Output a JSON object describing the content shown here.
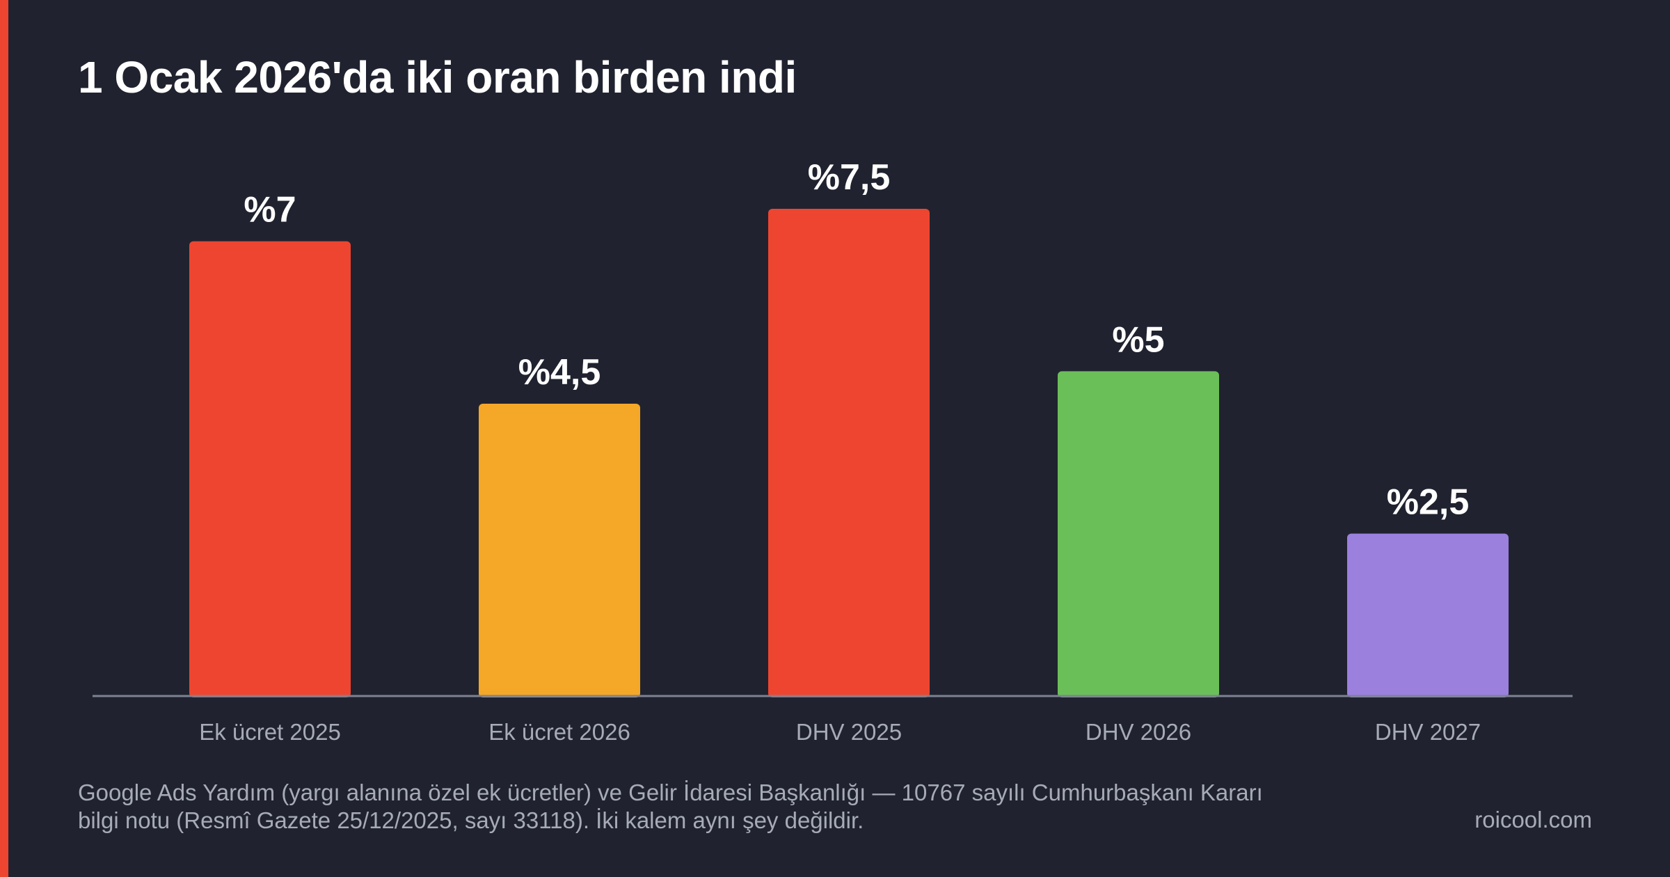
{
  "colors": {
    "background": "#20232f",
    "accent": "#ee4530",
    "axis": "#7d8294"
  },
  "chart_data": {
    "type": "bar",
    "title": "1 Ocak 2026'da iki oran birden indi",
    "categories": [
      "Ek ücret 2025",
      "Ek ücret 2026",
      "DHV 2025",
      "DHV 2026",
      "DHV 2027"
    ],
    "values": [
      7,
      4.5,
      7.5,
      5,
      2.5
    ],
    "value_labels": [
      "%7",
      "%4,5",
      "%7,5",
      "%5",
      "%2,5"
    ],
    "colors": [
      "#ee4530",
      "#f5a727",
      "#ee4530",
      "#6bbf59",
      "#9b80dd"
    ],
    "ylim": [
      0,
      7.5
    ],
    "xlabel": "",
    "ylabel": "",
    "grid": false,
    "legend": "none"
  },
  "footer": {
    "source_line1": "Google Ads Yardım (yargı alanına özel ek ücretler) ve Gelir İdaresi Başkanlığı — 10767 sayılı Cumhurbaşkanı Kararı",
    "source_line2": "bilgi notu (Resmî Gazete 25/12/2025, sayı 33118). İki kalem aynı şey değildir.",
    "brand": "roicool.com"
  }
}
